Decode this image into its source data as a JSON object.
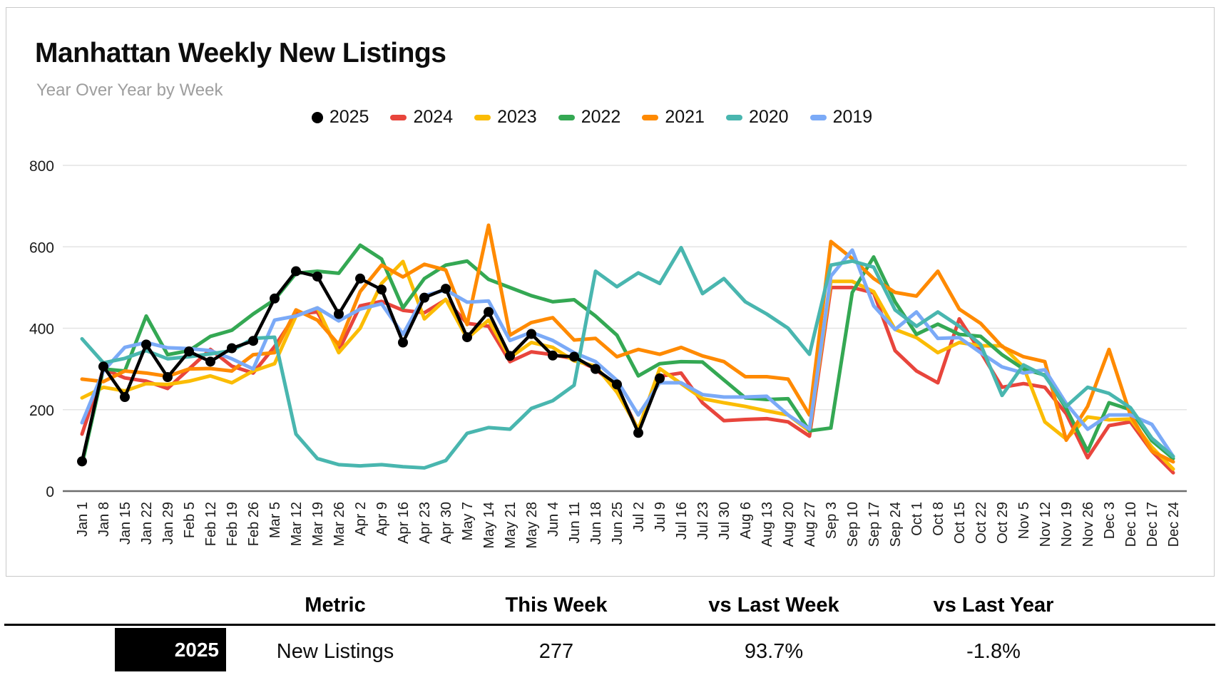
{
  "chart_data": {
    "type": "line",
    "title": "Manhattan Weekly New Listings",
    "subtitle": "Year Over Year by Week",
    "xlabel": "",
    "ylabel": "",
    "ylim": [
      0,
      800
    ],
    "y_ticks": [
      0,
      200,
      400,
      600,
      800
    ],
    "grid": true,
    "legend_position": "top",
    "x_labels": [
      "Jan 1",
      "Jan 8",
      "Jan 15",
      "Jan 22",
      "Jan 29",
      "Feb 5",
      "Feb 12",
      "Feb 19",
      "Feb 26",
      "Mar 5",
      "Mar 12",
      "Mar 19",
      "Mar 26",
      "Apr 2",
      "Apr 9",
      "Apr 16",
      "Apr 23",
      "Apr 30",
      "May 7",
      "May 14",
      "May 21",
      "May 28",
      "Jun 4",
      "Jun 11",
      "Jun 18",
      "Jun 25",
      "Jul 2",
      "Jul 9",
      "Jul 16",
      "Jul 23",
      "Jul 30",
      "Aug 6",
      "Aug 13",
      "Aug 20",
      "Aug 27",
      "Sep 3",
      "Sep 10",
      "Sep 17",
      "Sep 24",
      "Oct 1",
      "Oct 8",
      "Oct 15",
      "Oct 22",
      "Oct 29",
      "Nov 5",
      "Nov 12",
      "Nov 19",
      "Nov 26",
      "Dec 3",
      "Dec 10",
      "Dec 17",
      "Dec 24"
    ],
    "series": [
      {
        "name": "2025",
        "color": "#000000",
        "marker": "circle",
        "values": [
          73,
          306,
          231,
          360,
          280,
          343,
          318,
          351,
          369,
          473,
          540,
          527,
          435,
          522,
          495,
          365,
          475,
          497,
          378,
          440,
          332,
          386,
          333,
          330,
          300,
          262,
          143,
          277,
          null,
          null,
          null,
          null,
          null,
          null,
          null,
          null,
          null,
          null,
          null,
          null,
          null,
          null,
          null,
          null,
          null,
          null,
          null,
          null,
          null,
          null,
          null,
          null
        ]
      },
      {
        "name": "2024",
        "color": "#E8453C",
        "values": [
          140,
          300,
          278,
          270,
          252,
          300,
          348,
          307,
          290,
          355,
          435,
          440,
          345,
          455,
          466,
          444,
          438,
          470,
          412,
          405,
          318,
          342,
          335,
          325,
          300,
          255,
          150,
          282,
          290,
          217,
          173,
          176,
          178,
          170,
          135,
          500,
          500,
          487,
          345,
          295,
          266,
          423,
          342,
          255,
          264,
          255,
          190,
          82,
          161,
          170,
          98,
          45
        ]
      },
      {
        "name": "2023",
        "color": "#FBBC04",
        "values": [
          229,
          255,
          246,
          264,
          262,
          270,
          283,
          266,
          295,
          313,
          430,
          450,
          340,
          400,
          510,
          564,
          423,
          471,
          375,
          420,
          328,
          365,
          353,
          320,
          307,
          243,
          152,
          301,
          264,
          227,
          217,
          208,
          197,
          187,
          147,
          515,
          515,
          490,
          397,
          377,
          340,
          365,
          357,
          357,
          305,
          170,
          128,
          182,
          175,
          177,
          108,
          54
        ]
      },
      {
        "name": "2022",
        "color": "#34A853",
        "values": [
          65,
          300,
          295,
          430,
          335,
          345,
          380,
          395,
          435,
          470,
          535,
          540,
          535,
          604,
          570,
          450,
          522,
          555,
          565,
          520,
          500,
          480,
          465,
          470,
          430,
          383,
          283,
          313,
          318,
          317,
          273,
          229,
          225,
          227,
          148,
          155,
          488,
          575,
          465,
          385,
          410,
          385,
          380,
          335,
          300,
          285,
          203,
          98,
          217,
          200,
          124,
          80
        ]
      },
      {
        "name": "2021",
        "color": "#FF8A00",
        "values": [
          275,
          269,
          295,
          290,
          282,
          300,
          301,
          295,
          335,
          340,
          445,
          420,
          360,
          490,
          555,
          526,
          557,
          543,
          409,
          653,
          383,
          414,
          426,
          371,
          375,
          330,
          348,
          336,
          353,
          332,
          318,
          281,
          281,
          275,
          187,
          613,
          571,
          522,
          488,
          479,
          540,
          447,
          412,
          355,
          330,
          318,
          125,
          208,
          348,
          187,
          98,
          72
        ]
      },
      {
        "name": "2020",
        "color": "#49B6AF",
        "values": [
          374,
          315,
          326,
          345,
          325,
          330,
          337,
          345,
          375,
          378,
          140,
          80,
          65,
          62,
          65,
          60,
          57,
          75,
          142,
          156,
          152,
          203,
          222,
          260,
          540,
          502,
          536,
          510,
          598,
          485,
          522,
          465,
          435,
          400,
          336,
          555,
          565,
          550,
          445,
          405,
          440,
          405,
          360,
          235,
          310,
          283,
          208,
          255,
          240,
          205,
          130,
          85
        ]
      },
      {
        "name": "2019",
        "color": "#7BAAF7",
        "values": [
          168,
          295,
          353,
          365,
          352,
          350,
          345,
          325,
          300,
          420,
          430,
          450,
          418,
          447,
          460,
          385,
          480,
          494,
          464,
          467,
          370,
          390,
          370,
          340,
          318,
          272,
          187,
          266,
          266,
          237,
          231,
          231,
          233,
          187,
          152,
          528,
          592,
          455,
          397,
          440,
          375,
          377,
          340,
          305,
          290,
          298,
          215,
          152,
          187,
          187,
          164,
          85
        ]
      }
    ]
  },
  "table": {
    "headers": [
      "Metric",
      "This Week",
      "vs Last Week",
      "vs Last Year"
    ],
    "rows": [
      {
        "year": "2025",
        "metric": "New Listings",
        "this_week": "277",
        "vs_last_week": "93.7%",
        "vs_last_year": "-1.8%"
      }
    ]
  }
}
